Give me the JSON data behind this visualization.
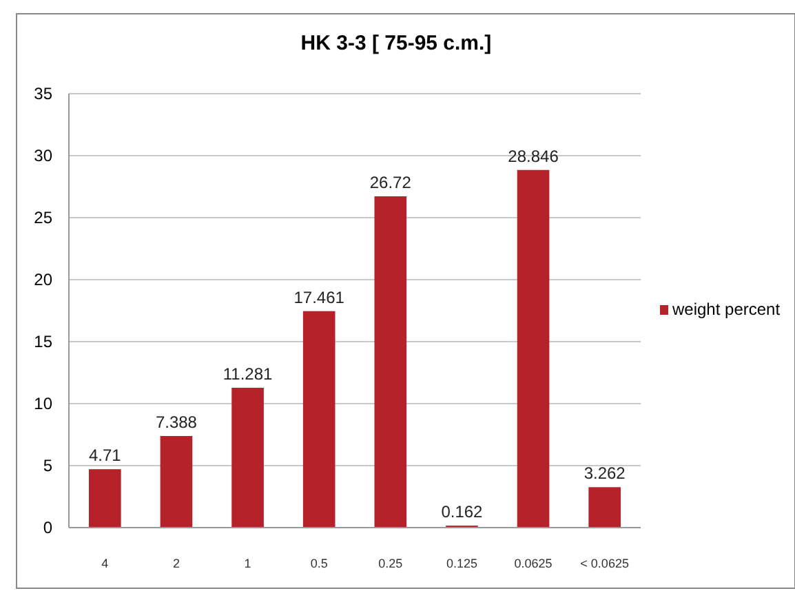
{
  "chart_data": {
    "type": "bar",
    "title": "HK 3-3 [ 75-95 c.m.]",
    "categories": [
      "4",
      "2",
      "1",
      "0.5",
      "0.25",
      "0.125",
      "0.0625",
      "< 0.0625"
    ],
    "series": [
      {
        "name": "weight percent",
        "color": "#b5222a",
        "values": [
          4.71,
          7.388,
          11.281,
          17.461,
          26.72,
          0.162,
          28.846,
          3.262
        ]
      }
    ],
    "ylim": [
      0,
      35
    ],
    "yticks": [
      0,
      5,
      10,
      15,
      20,
      25,
      30,
      35
    ],
    "grid": "y",
    "legend": "right",
    "data_labels": true
  }
}
